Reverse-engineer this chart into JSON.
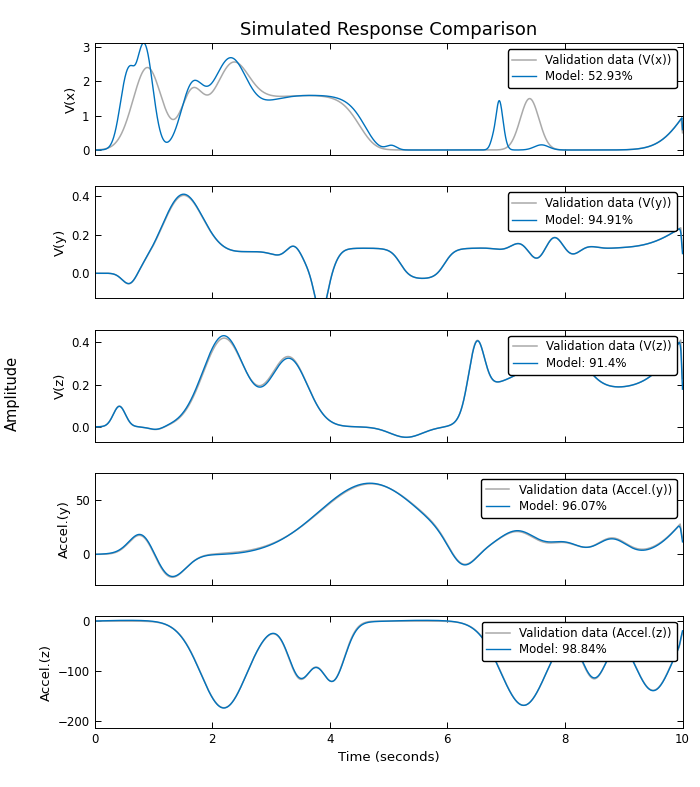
{
  "title": "Simulated Response Comparison",
  "xlabel": "Time (seconds)",
  "ylabel_center": "Amplitude",
  "subplots": [
    {
      "ylabel": "V(x)",
      "legend_val": "Validation data (V(x))",
      "legend_model": "Model: 52.93%",
      "ylim": [
        -0.15,
        3.1
      ]
    },
    {
      "ylabel": "V(y)",
      "legend_val": "Validation data (V(y))",
      "legend_model": "Model: 94.91%",
      "ylim": [
        -0.13,
        0.45
      ]
    },
    {
      "ylabel": "V(z)",
      "legend_val": "Validation data (V(z))",
      "legend_model": "Model: 91.4%",
      "ylim": [
        -0.07,
        0.46
      ]
    },
    {
      "ylabel": "Accel.(y)",
      "legend_val": "Validation data (Accel.(y))",
      "legend_model": "Model: 96.07%",
      "ylim": [
        -28,
        75
      ]
    },
    {
      "ylabel": "Accel.(z)",
      "legend_val": "Validation data (Accel.(z))",
      "legend_model": "Model: 98.84%",
      "ylim": [
        -215,
        10
      ]
    }
  ],
  "color_validation": "#aaaaaa",
  "color_model": "#0072BD",
  "xlim": [
    0,
    10
  ],
  "n_points": 3000,
  "background_color": "#ffffff",
  "title_fontsize": 13,
  "label_fontsize": 9.5,
  "legend_fontsize": 8.5,
  "tick_fontsize": 8.5,
  "linewidth_val": 1.1,
  "linewidth_mod": 1.0
}
